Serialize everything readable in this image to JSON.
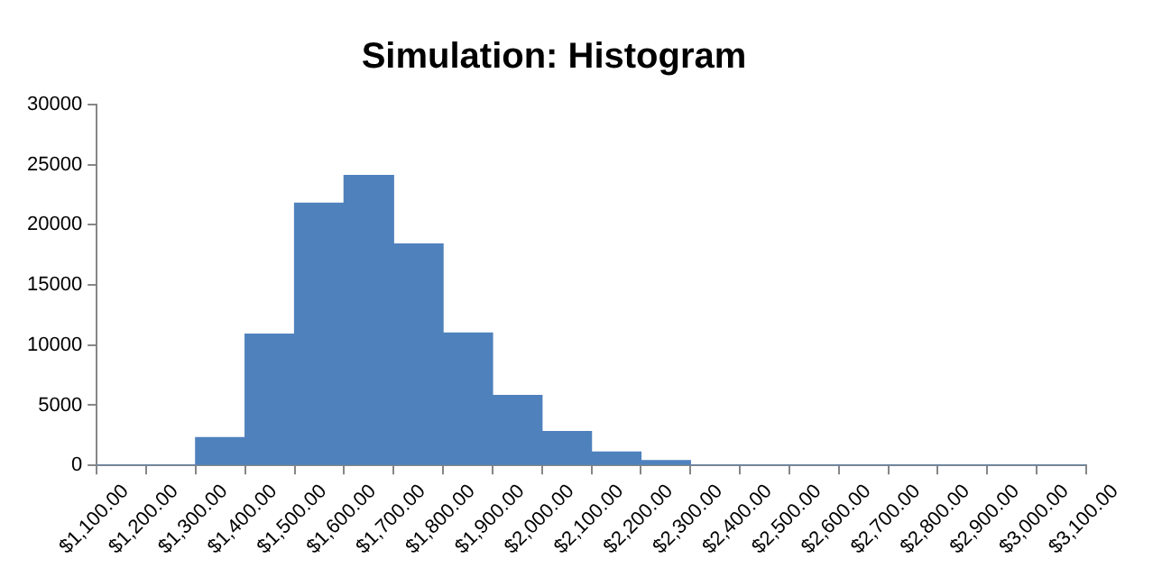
{
  "chart_data": {
    "type": "histogram",
    "title": "Simulation: Histogram",
    "bins": [
      1100,
      1200,
      1300,
      1400,
      1500,
      1600,
      1700,
      1800,
      1900,
      2000,
      2100,
      2200,
      2300,
      2400,
      2500,
      2600,
      2700,
      2800,
      2900,
      3000,
      3100
    ],
    "values": [
      0,
      0,
      2300,
      10900,
      21800,
      24100,
      18400,
      11000,
      5800,
      2800,
      1100,
      400,
      0,
      0,
      0,
      0,
      0,
      0,
      0,
      0
    ],
    "color": "#4f81bd",
    "xlim": [
      1100,
      3100
    ],
    "xticks": [
      {
        "value": 1100,
        "label": "$1,100.00"
      },
      {
        "value": 1200,
        "label": "$1,200.00"
      },
      {
        "value": 1300,
        "label": "$1,300.00"
      },
      {
        "value": 1400,
        "label": "$1,400.00"
      },
      {
        "value": 1500,
        "label": "$1,500.00"
      },
      {
        "value": 1600,
        "label": "$1,600.00"
      },
      {
        "value": 1700,
        "label": "$1,700.00"
      },
      {
        "value": 1800,
        "label": "$1,800.00"
      },
      {
        "value": 1900,
        "label": "$1,900.00"
      },
      {
        "value": 2000,
        "label": "$2,000.00"
      },
      {
        "value": 2100,
        "label": "$2,100.00"
      },
      {
        "value": 2200,
        "label": "$2,200.00"
      },
      {
        "value": 2300,
        "label": "$2,300.00"
      },
      {
        "value": 2400,
        "label": "$2,400.00"
      },
      {
        "value": 2500,
        "label": "$2,500.00"
      },
      {
        "value": 2600,
        "label": "$2,600.00"
      },
      {
        "value": 2700,
        "label": "$2,700.00"
      },
      {
        "value": 2800,
        "label": "$2,800.00"
      },
      {
        "value": 2900,
        "label": "$2,900.00"
      },
      {
        "value": 3000,
        "label": "$3,000.00"
      },
      {
        "value": 3100,
        "label": "$3,100.00"
      }
    ],
    "ylim": [
      0,
      30000
    ],
    "yticks": [
      0,
      5000,
      10000,
      15000,
      20000,
      25000,
      30000
    ]
  }
}
